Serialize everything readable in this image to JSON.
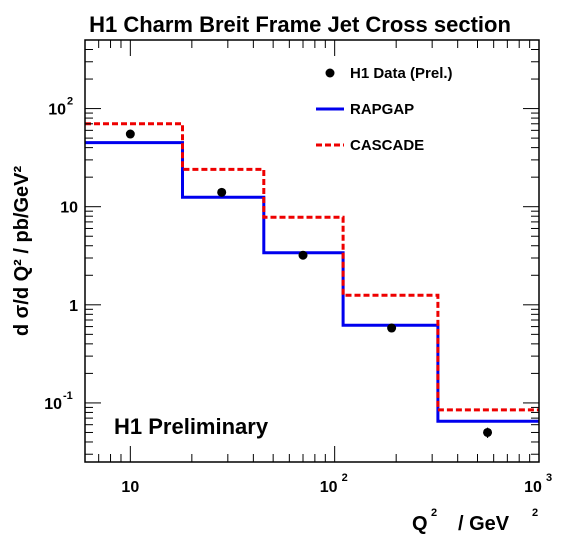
{
  "chart_data": {
    "type": "line",
    "title": "H1 Charm Breit Frame Jet Cross section",
    "xlabel": {
      "base": "Q",
      "sup": "2",
      "unit": "/ GeV",
      "unit_sup": "2"
    },
    "ylabel": "d σ/d Q² / pb/GeV²",
    "xscale": "log",
    "yscale": "log",
    "xlim": [
      6,
      1000
    ],
    "ylim": [
      0.025,
      500
    ],
    "x_ticks": [
      {
        "value": 10,
        "base": "10",
        "sup": ""
      },
      {
        "value": 100,
        "base": "10",
        "sup": "2"
      },
      {
        "value": 1000,
        "base": "10",
        "sup": "3"
      }
    ],
    "y_ticks": [
      {
        "value": 0.1,
        "base": "10",
        "sup": "-1"
      },
      {
        "value": 1,
        "base": "1",
        "sup": ""
      },
      {
        "value": 10,
        "base": "10",
        "sup": ""
      },
      {
        "value": 100,
        "base": "10",
        "sup": "2"
      }
    ],
    "bin_edges": [
      6,
      18,
      45,
      110,
      320,
      1000
    ],
    "series": [
      {
        "name": "H1 Data (Prel.)",
        "style": "points",
        "color": "#000000",
        "x": [
          10,
          28,
          70,
          190,
          560
        ],
        "y": [
          55,
          14,
          3.2,
          0.58,
          0.05
        ],
        "yerr": [
          2,
          0.5,
          0.15,
          0.03,
          0.006
        ]
      },
      {
        "name": "RAPGAP",
        "style": "histogram",
        "color": "#0000ee",
        "values": [
          45,
          12.5,
          3.4,
          0.62,
          0.065
        ]
      },
      {
        "name": "CASCADE",
        "style": "histogram-dashed",
        "color": "#ee0000",
        "values": [
          70,
          24,
          7.8,
          1.25,
          0.085
        ]
      }
    ],
    "legend_position": "top-right",
    "annotation": "H1 Preliminary",
    "grid": false
  }
}
